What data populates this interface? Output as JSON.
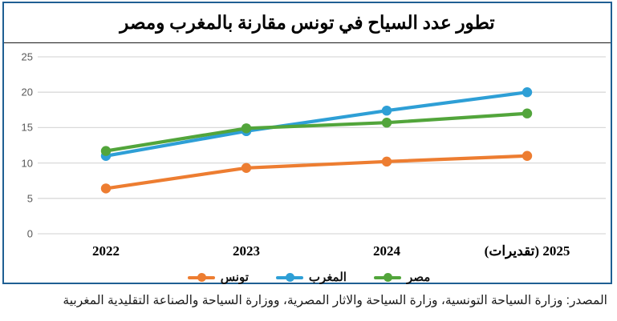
{
  "title": "تطور عدد السياح في تونس مقارنة بالمغرب ومصر",
  "source": "المصدر: وزارة السياحة التونسية، وزارة السياحة والاثار المصرية، ووزارة السياحة والصناعة التقليدية المغربية",
  "colors": {
    "figure_border": "#1F5F93",
    "gridline": "#D9D9D9",
    "axis_label": "#595959",
    "tunisia": "#ED7D31",
    "morocco": "#2E9FD6",
    "egypt": "#52A53B"
  },
  "chart_data": {
    "type": "line",
    "title": "تطور عدد السياح في تونس مقارنة بالمغرب ومصر",
    "categories": [
      "2022",
      "2023",
      "2024",
      "2025 (تقديرات)"
    ],
    "series": [
      {
        "name": "تونس",
        "color": "#ED7D31",
        "values": [
          6.4,
          9.3,
          10.2,
          11
        ]
      },
      {
        "name": "المغرب",
        "color": "#2E9FD6",
        "values": [
          11,
          14.5,
          17.4,
          20
        ]
      },
      {
        "name": "مصر",
        "color": "#52A53B",
        "values": [
          11.7,
          14.9,
          15.7,
          17
        ]
      }
    ],
    "xlabel": "",
    "ylabel": "",
    "ylim": [
      0,
      25
    ],
    "yticks": [
      0,
      5,
      10,
      15,
      20,
      25
    ],
    "grid": true,
    "legend_position": "bottom"
  }
}
